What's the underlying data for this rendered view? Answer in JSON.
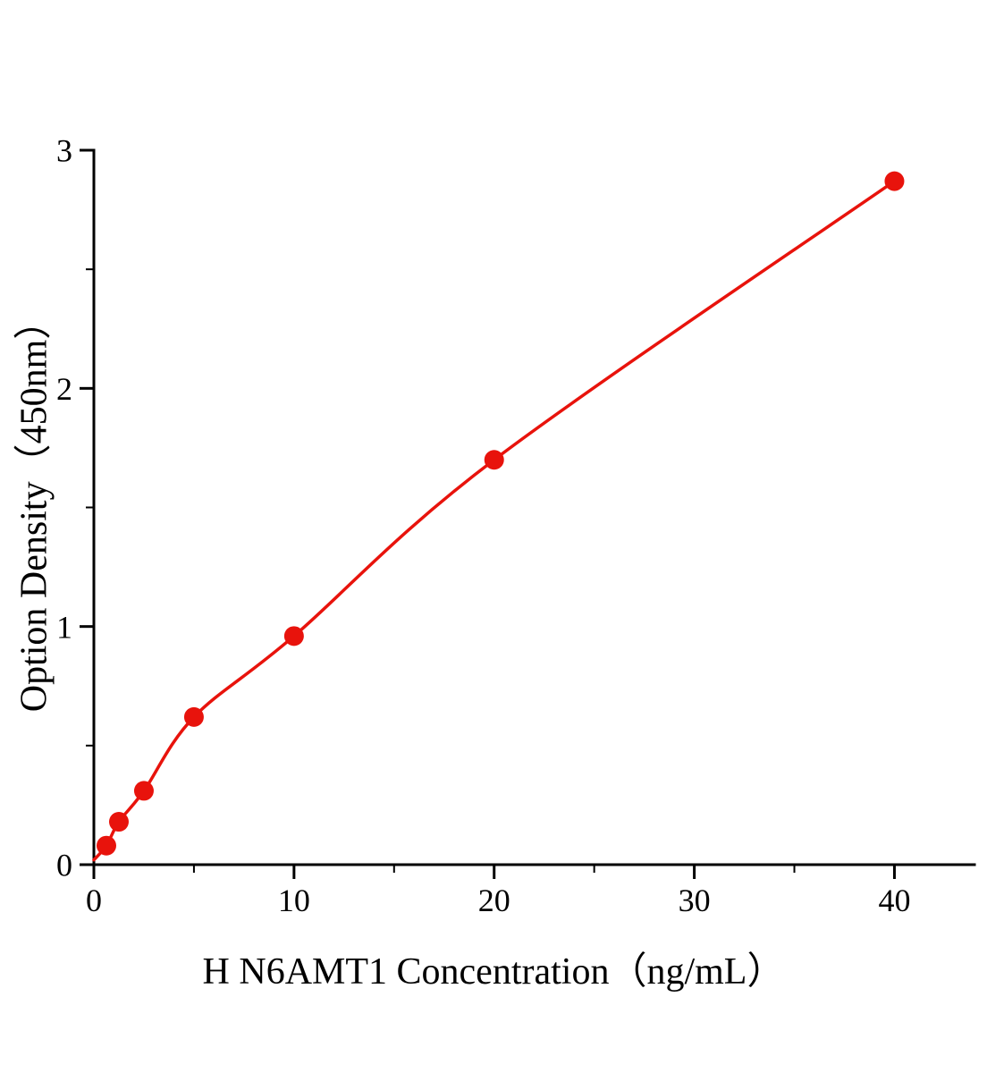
{
  "figure": {
    "background": "#ffffff"
  },
  "chart_data": {
    "type": "line",
    "x": [
      0.625,
      1.25,
      2.5,
      5,
      10,
      20,
      40
    ],
    "y": [
      0.08,
      0.18,
      0.31,
      0.62,
      0.96,
      1.7,
      2.87
    ],
    "curve_start": [
      0,
      0.02
    ],
    "title": "",
    "xlabel": "H N6AMT1 Concentration（ng/mL）",
    "ylabel": "Option Density（450nm）",
    "xlim": [
      0,
      44
    ],
    "ylim": [
      0,
      3
    ],
    "x_major_ticks": [
      0,
      10,
      20,
      30,
      40
    ],
    "x_minor_step": 5,
    "y_major_ticks": [
      0,
      1,
      2,
      3
    ],
    "y_minor_step": 0.5,
    "line_color": "#e8130c",
    "marker_color": "#e8130c",
    "marker": "circle",
    "axis_color": "#000000",
    "grid": false,
    "legend": null
  }
}
